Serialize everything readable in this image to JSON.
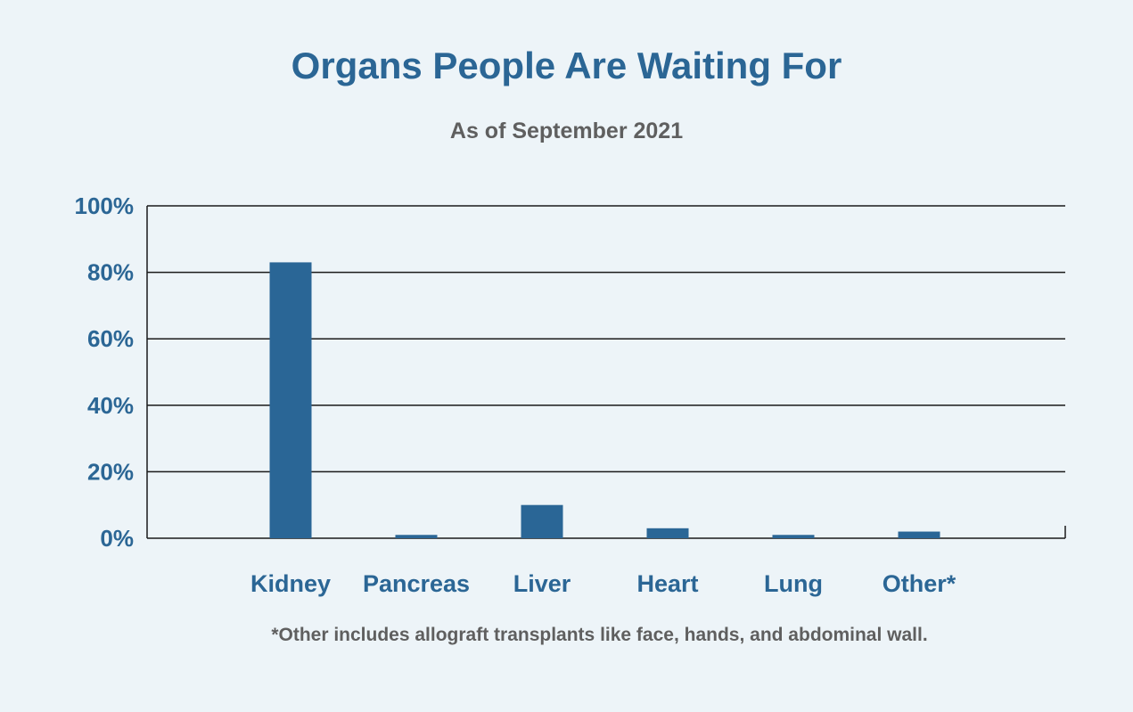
{
  "chart_data": {
    "type": "bar",
    "title": "Organs People Are Waiting For",
    "subtitle": "As of September 2021",
    "footnote": "*Other includes allograft transplants like face, hands, and abdominal wall.",
    "categories": [
      "Kidney",
      "Pancreas",
      "Liver",
      "Heart",
      "Lung",
      "Other*"
    ],
    "values": [
      83,
      1,
      10,
      3,
      1,
      2
    ],
    "xlabel": "",
    "ylabel": "",
    "ylim": [
      0,
      100
    ],
    "yticks": [
      "0%",
      "20%",
      "40%",
      "60%",
      "80%",
      "100%"
    ],
    "ytick_values": [
      0,
      20,
      40,
      60,
      80,
      100
    ],
    "grid": true,
    "legend": "none",
    "colors": {
      "bar": "#2a6696",
      "title": "#2b6695",
      "text": "#5f5f5f",
      "grid": "#1a1a1a",
      "background": "#edf4f8"
    }
  }
}
